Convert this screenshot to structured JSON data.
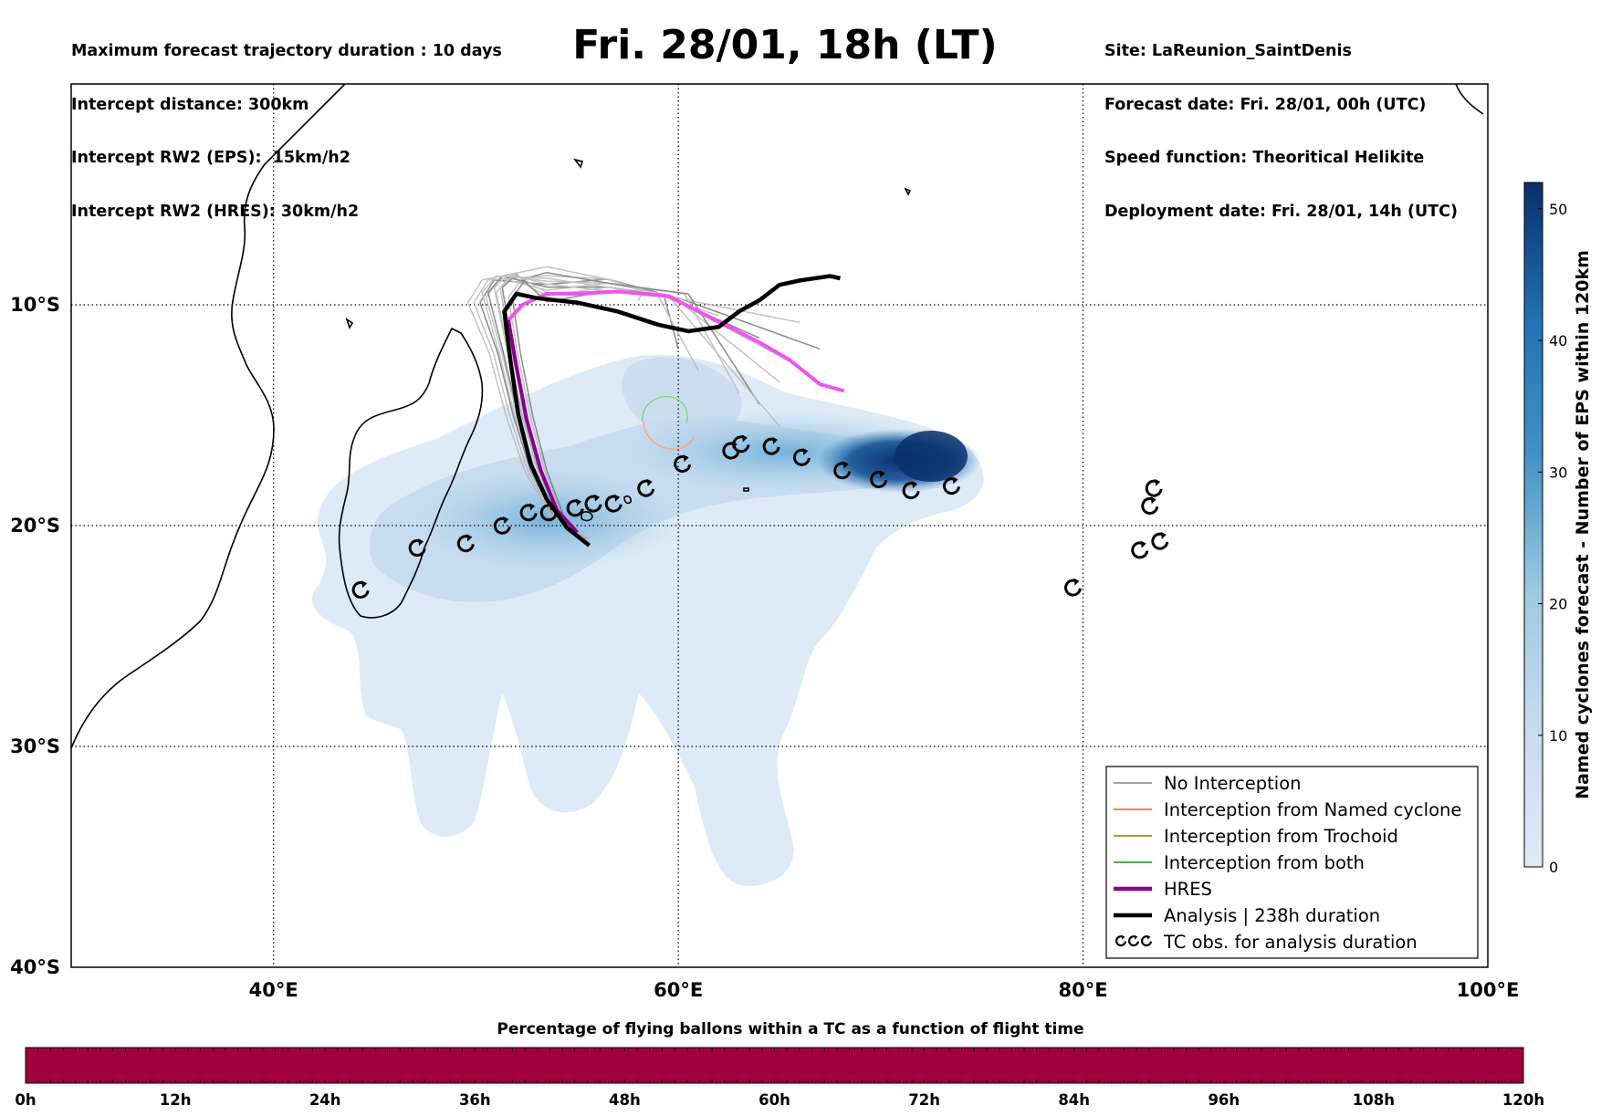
{
  "header": {
    "left_lines": [
      "Maximum forecast trajectory duration : 10 days",
      "Intercept distance: 300km",
      "Intercept RW2 (EPS):  15km/h2",
      "Intercept RW2 (HRES): 30km/h2"
    ],
    "title": "Fri. 28/01, 18h (LT)",
    "right_lines": [
      "Site: LaReunion_SaintDenis",
      "Forecast date: Fri. 28/01, 00h (UTC)",
      "Speed function: Theoritical Helikite",
      "Deployment date: Fri. 28/01, 14h (UTC)"
    ]
  },
  "map": {
    "lon_ticks": [
      "40°E",
      "60°E",
      "80°E",
      "100°E"
    ],
    "lat_ticks": [
      "10°S",
      "20°S",
      "30°S",
      "40°S"
    ],
    "extent": {
      "lon": [
        30,
        100
      ],
      "lat": [
        -40,
        0
      ]
    },
    "gridlines": true
  },
  "legend": {
    "items": [
      {
        "label": "No Interception",
        "color": "#808080",
        "style": "thin"
      },
      {
        "label": "Interception from Named cyclone",
        "color": "#ff5a1f",
        "style": "thin"
      },
      {
        "label": "Interception from Trochoid",
        "color": "#808000",
        "style": "thin"
      },
      {
        "label": "Interception from both",
        "color": "#1a8a1a",
        "style": "thin"
      },
      {
        "label": "HRES",
        "color": "#8b008b",
        "style": "thick"
      },
      {
        "label": "Analysis | 238h duration",
        "color": "#000000",
        "style": "thick"
      },
      {
        "label": "TC obs. for analysis duration",
        "color": "#000000",
        "style": "symbol"
      }
    ],
    "position": "lower-right"
  },
  "colorbar": {
    "label": "Named cyclones forecast - Number of EPS within 120km",
    "ticks": [
      "0",
      "10",
      "20",
      "30",
      "40",
      "50"
    ],
    "range": [
      0,
      52
    ],
    "colors": [
      "#deebf7",
      "#08306b"
    ]
  },
  "bottom_bar": {
    "title": "Percentage of flying ballons within a TC as a function of flight time",
    "ticks": [
      "0h",
      "12h",
      "24h",
      "36h",
      "48h",
      "60h",
      "72h",
      "84h",
      "96h",
      "108h",
      "120h"
    ],
    "color": "#a0003c"
  },
  "analysis_track": [
    [
      55.6,
      -20.9
    ],
    [
      54.5,
      -20.1
    ],
    [
      53.5,
      -18.8
    ],
    [
      52.7,
      -17.2
    ],
    [
      52.1,
      -15.0
    ],
    [
      51.7,
      -12.5
    ],
    [
      51.4,
      -10.3
    ],
    [
      52.0,
      -9.5
    ],
    [
      53.0,
      -9.7
    ],
    [
      55.0,
      -9.9
    ],
    [
      57.0,
      -10.3
    ],
    [
      59.0,
      -10.9
    ],
    [
      60.5,
      -11.2
    ],
    [
      62.0,
      -11.0
    ],
    [
      63.0,
      -10.3
    ],
    [
      64.0,
      -9.8
    ],
    [
      65.0,
      -9.1
    ],
    [
      66.0,
      -8.9
    ],
    [
      67.5,
      -8.7
    ],
    [
      68.0,
      -8.8
    ]
  ],
  "hres_track": [
    [
      55.0,
      -20.3
    ],
    [
      54.0,
      -19.3
    ],
    [
      53.2,
      -17.5
    ],
    [
      52.5,
      -15.2
    ],
    [
      52.0,
      -12.8
    ],
    [
      51.6,
      -10.7
    ],
    [
      52.3,
      -10.0
    ],
    [
      53.5,
      -9.5
    ],
    [
      55.0,
      -9.5
    ],
    [
      57.0,
      -9.4
    ],
    [
      59.5,
      -9.6
    ],
    [
      61.0,
      -10.3
    ],
    [
      62.5,
      -11.0
    ],
    [
      64.0,
      -11.7
    ],
    [
      65.5,
      -12.5
    ],
    [
      67.0,
      -13.6
    ],
    [
      68.2,
      -13.9
    ]
  ],
  "tc_obs": [
    [
      44.3,
      -22.9
    ],
    [
      47.1,
      -21.0
    ],
    [
      49.5,
      -20.8
    ],
    [
      51.3,
      -20.0
    ],
    [
      52.6,
      -19.4
    ],
    [
      53.6,
      -19.4
    ],
    [
      54.9,
      -19.2
    ],
    [
      55.8,
      -19.0
    ],
    [
      56.8,
      -19.0
    ],
    [
      58.4,
      -18.3
    ],
    [
      60.2,
      -17.2
    ],
    [
      62.6,
      -16.6
    ],
    [
      63.1,
      -16.3
    ],
    [
      64.6,
      -16.4
    ],
    [
      66.1,
      -16.9
    ],
    [
      68.1,
      -17.5
    ],
    [
      69.9,
      -17.9
    ],
    [
      71.5,
      -18.4
    ],
    [
      73.5,
      -18.2
    ],
    [
      79.5,
      -22.8
    ],
    [
      82.8,
      -21.1
    ],
    [
      83.8,
      -20.7
    ],
    [
      83.3,
      -19.1
    ],
    [
      83.5,
      -18.3
    ]
  ]
}
